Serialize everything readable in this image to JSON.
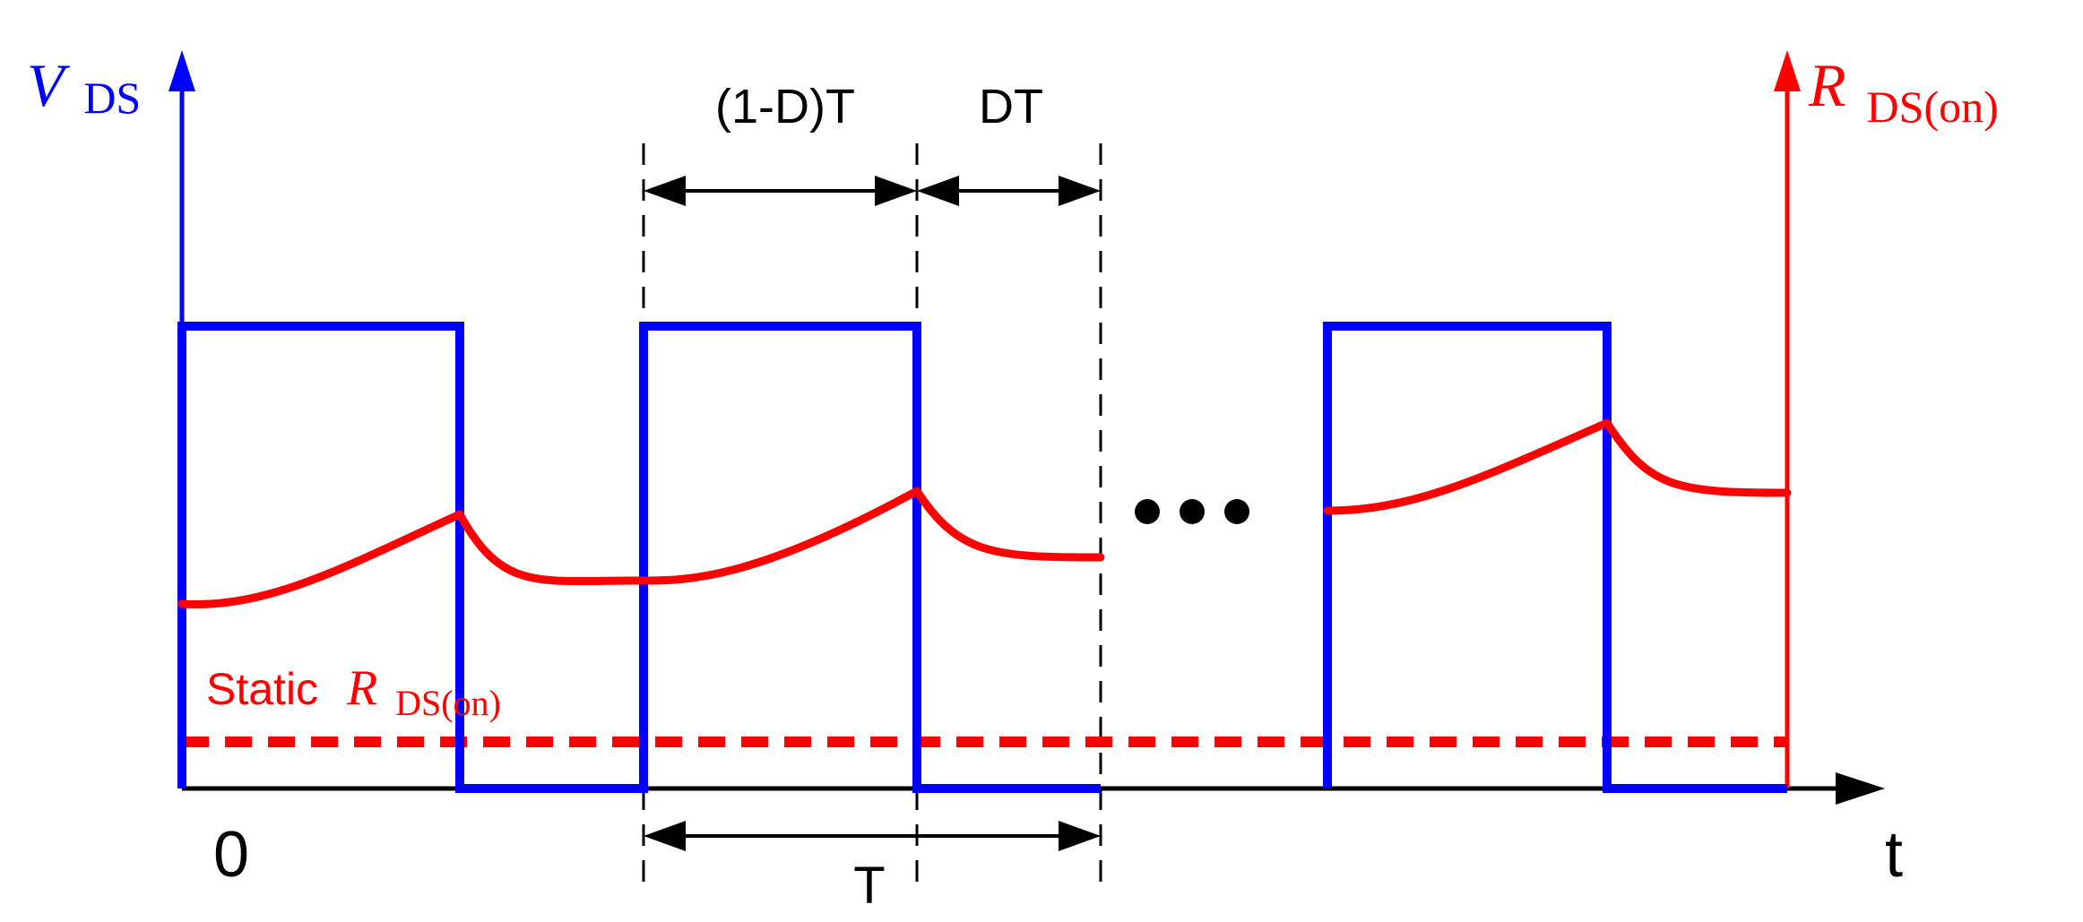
{
  "colors": {
    "vds": "#0000ff",
    "rds": "#ff0000",
    "axis": "#000000",
    "guides": "#000000"
  },
  "labels": {
    "vds_axis": {
      "main": "V",
      "sub": "DS"
    },
    "rds_axis": {
      "main": "R",
      "sub": "DS(on)"
    },
    "static_label": {
      "prefix": "Static",
      "main": "R",
      "sub": "DS(on)"
    },
    "origin": "0",
    "time": "t",
    "period": "T",
    "off_interval": "(1-D)T",
    "on_interval": "DT"
  },
  "icons": {
    "continuation": "ellipsis-dots"
  }
}
